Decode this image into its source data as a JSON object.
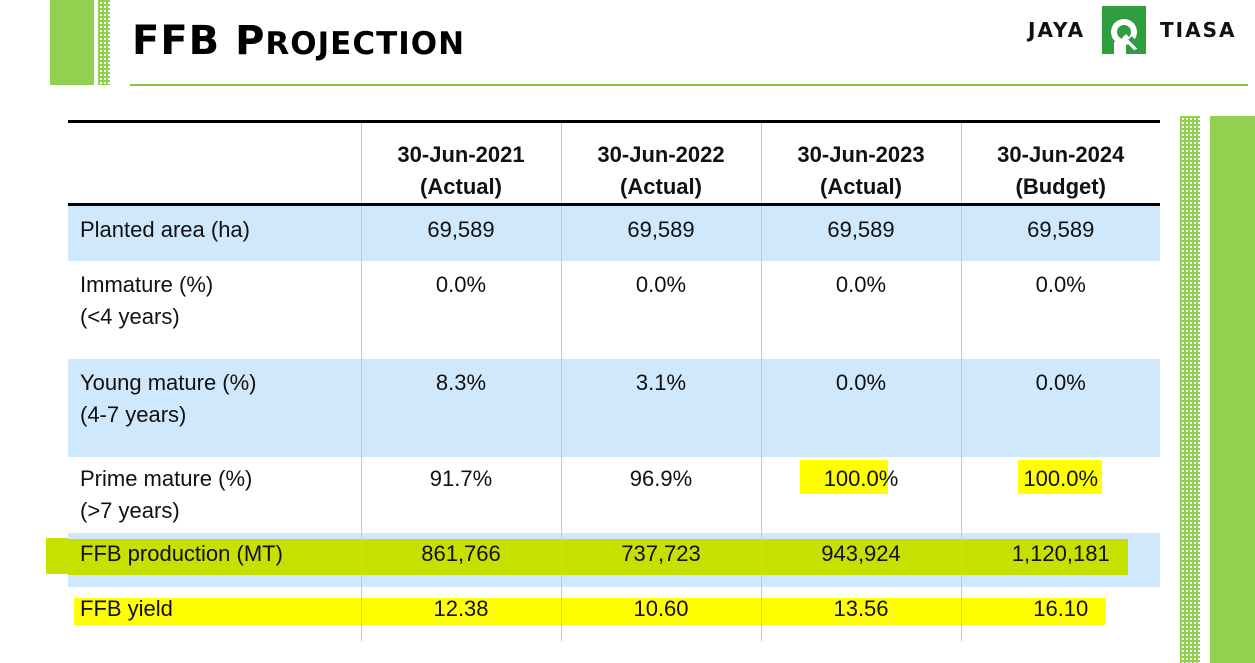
{
  "title": {
    "first": "FFB",
    "rest_initial": "P",
    "rest_small": "ROJECTION"
  },
  "logo": {
    "left_word": "JAYA",
    "right_word": "TIASA",
    "icon": "jaya-tiasa-logo-icon",
    "color": "#2e9e3e"
  },
  "colors": {
    "accent_green": "#92d050",
    "row_blue": "#cfe8fb",
    "highlight_yellow": "#ffff00",
    "highlight_lime": "#c8e000"
  },
  "table": {
    "columns": [
      {
        "date": "30-Jun-2021",
        "type": "(Actual)"
      },
      {
        "date": "30-Jun-2022",
        "type": "(Actual)"
      },
      {
        "date": "30-Jun-2023",
        "type": "(Actual)"
      },
      {
        "date": "30-Jun-2024",
        "type": "(Budget)"
      }
    ],
    "rows": [
      {
        "label": "Planted area (ha)",
        "sub": "",
        "values": [
          "69,589",
          "69,589",
          "69,589",
          "69,589"
        ]
      },
      {
        "label": "Immature (%)",
        "sub": "(<4 years)",
        "values": [
          "0.0%",
          "0.0%",
          "0.0%",
          "0.0%"
        ]
      },
      {
        "label": "Young mature (%)",
        "sub": "(4-7 years)",
        "values": [
          "8.3%",
          "3.1%",
          "0.0%",
          "0.0%"
        ]
      },
      {
        "label": "Prime mature (%)",
        "sub": "(>7 years)",
        "values": [
          "91.7%",
          "96.9%",
          "100.0%",
          "100.0%"
        ]
      },
      {
        "label": "FFB production (MT)",
        "sub": "",
        "values": [
          "861,766",
          "737,723",
          "943,924",
          "1,120,181"
        ]
      },
      {
        "label": "FFB yield",
        "sub": "",
        "values": [
          "12.38",
          "10.60",
          "13.56",
          "16.10"
        ]
      }
    ]
  }
}
